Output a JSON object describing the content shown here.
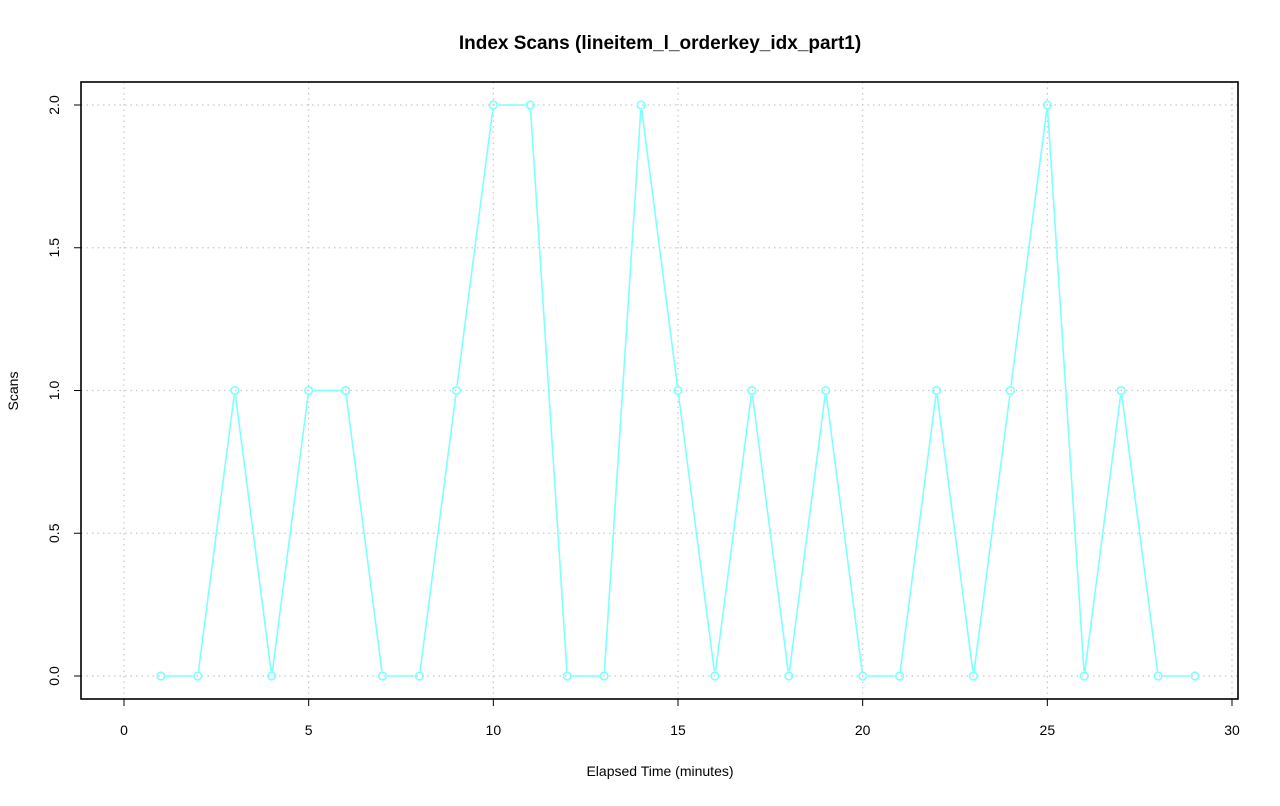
{
  "chart_data": {
    "type": "line",
    "title": "Index Scans (lineitem_l_orderkey_idx_part1)",
    "xlabel": "Elapsed Time (minutes)",
    "ylabel": "Scans",
    "xlim": [
      0,
      30
    ],
    "ylim": [
      0,
      2
    ],
    "x_ticks": [
      "0",
      "5",
      "10",
      "15",
      "20",
      "25",
      "30"
    ],
    "y_ticks": [
      "0.0",
      "0.5",
      "1.0",
      "1.5",
      "2.0"
    ],
    "grid": true,
    "series": [
      {
        "color": "#7fffff",
        "marker": "circle",
        "x": [
          1,
          2,
          3,
          4,
          5,
          6,
          7,
          8,
          9,
          10,
          11,
          12,
          13,
          14,
          15,
          16,
          17,
          18,
          19,
          20,
          21,
          22,
          23,
          24,
          25,
          26,
          27,
          28,
          29
        ],
        "y": [
          0,
          0,
          1,
          0,
          1,
          1,
          0,
          0,
          1,
          2,
          2,
          0,
          0,
          2,
          1,
          0,
          1,
          0,
          1,
          0,
          0,
          1,
          0,
          1,
          2,
          0,
          1,
          0,
          0
        ]
      }
    ]
  }
}
